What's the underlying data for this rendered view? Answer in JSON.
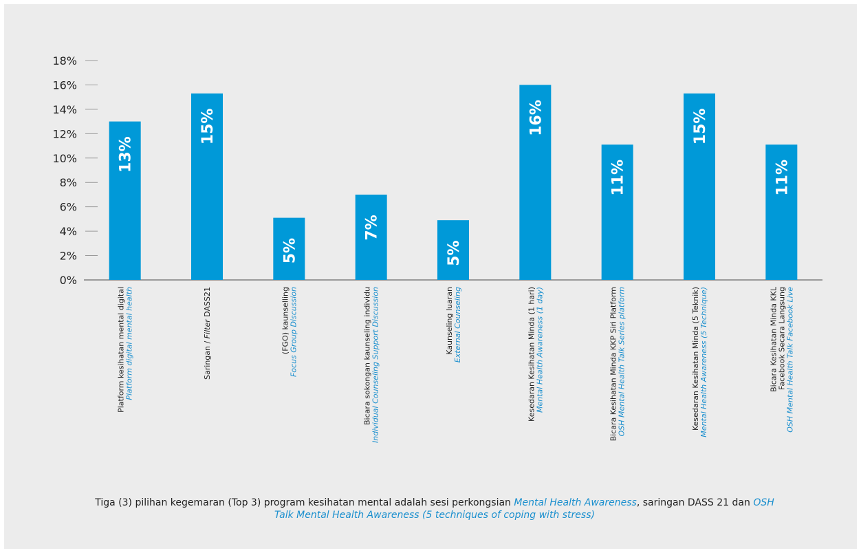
{
  "colors": {
    "bar": "#0099d8",
    "axis": "#9a9a9a",
    "english": "#1a8fce",
    "panel": "#ececec"
  },
  "chart_data": {
    "type": "bar",
    "ylim": [
      0,
      18
    ],
    "y_ticks": [
      "0%",
      "2%",
      "4%",
      "6%",
      "8%",
      "10%",
      "12%",
      "14%",
      "16%",
      "18%"
    ],
    "grid": false,
    "categories": [
      {
        "ms": [
          "Platform kesihatan mental digital"
        ],
        "en": [
          "Platform digital mental health"
        ]
      },
      {
        "ms_parts": [
          "Saringan / ",
          "Filter",
          " DASS21"
        ],
        "en": []
      },
      {
        "ms": [
          "(FGO) kaunselling"
        ],
        "en": [
          "Focus Group Discussion"
        ]
      },
      {
        "ms": [
          "Bicara sokongan kaunseling individu"
        ],
        "en": [
          "Individual Counseling Support Discussion"
        ]
      },
      {
        "ms": [
          "Kaunseling luaran"
        ],
        "en": [
          "External Counseling"
        ]
      },
      {
        "ms": [
          "Kesedaran Kesihatan Minda (1 hari)"
        ],
        "en": [
          "Mental Health Awareness (1 day)"
        ]
      },
      {
        "ms": [
          "Bicara Kesihatan Minda KKP Siri Platform"
        ],
        "en": [
          "OSH Mental Health Talk Series platform"
        ]
      },
      {
        "ms": [
          "Kesedaran Kesihatan Minda (5 Teknik)"
        ],
        "en": [
          "Mental Health Awareness (5 Technique)"
        ]
      },
      {
        "ms": [
          "Bicara Kesihatan Minda KKL",
          "Facebook Secara Langsung"
        ],
        "en": [
          "OSH Mental Health Talk Facebook Live"
        ]
      }
    ],
    "values": [
      13,
      15.3,
      5.1,
      7,
      4.9,
      16,
      11.1,
      15.3,
      11.1
    ],
    "data_labels": [
      "13%",
      "15%",
      "5%",
      "7%",
      "5%",
      "16%",
      "11%",
      "15%",
      "11%"
    ]
  },
  "footnote": {
    "p1": "Tiga (3) pilihan kegemaran (Top 3) program kesihatan mental adalah sesi perkongsian ",
    "p2": "Mental Health Awareness",
    "p3": ", saringan DASS 21 dan ",
    "p4": "OSH Talk Mental Health Awareness (5 techniques of coping with stress)"
  }
}
